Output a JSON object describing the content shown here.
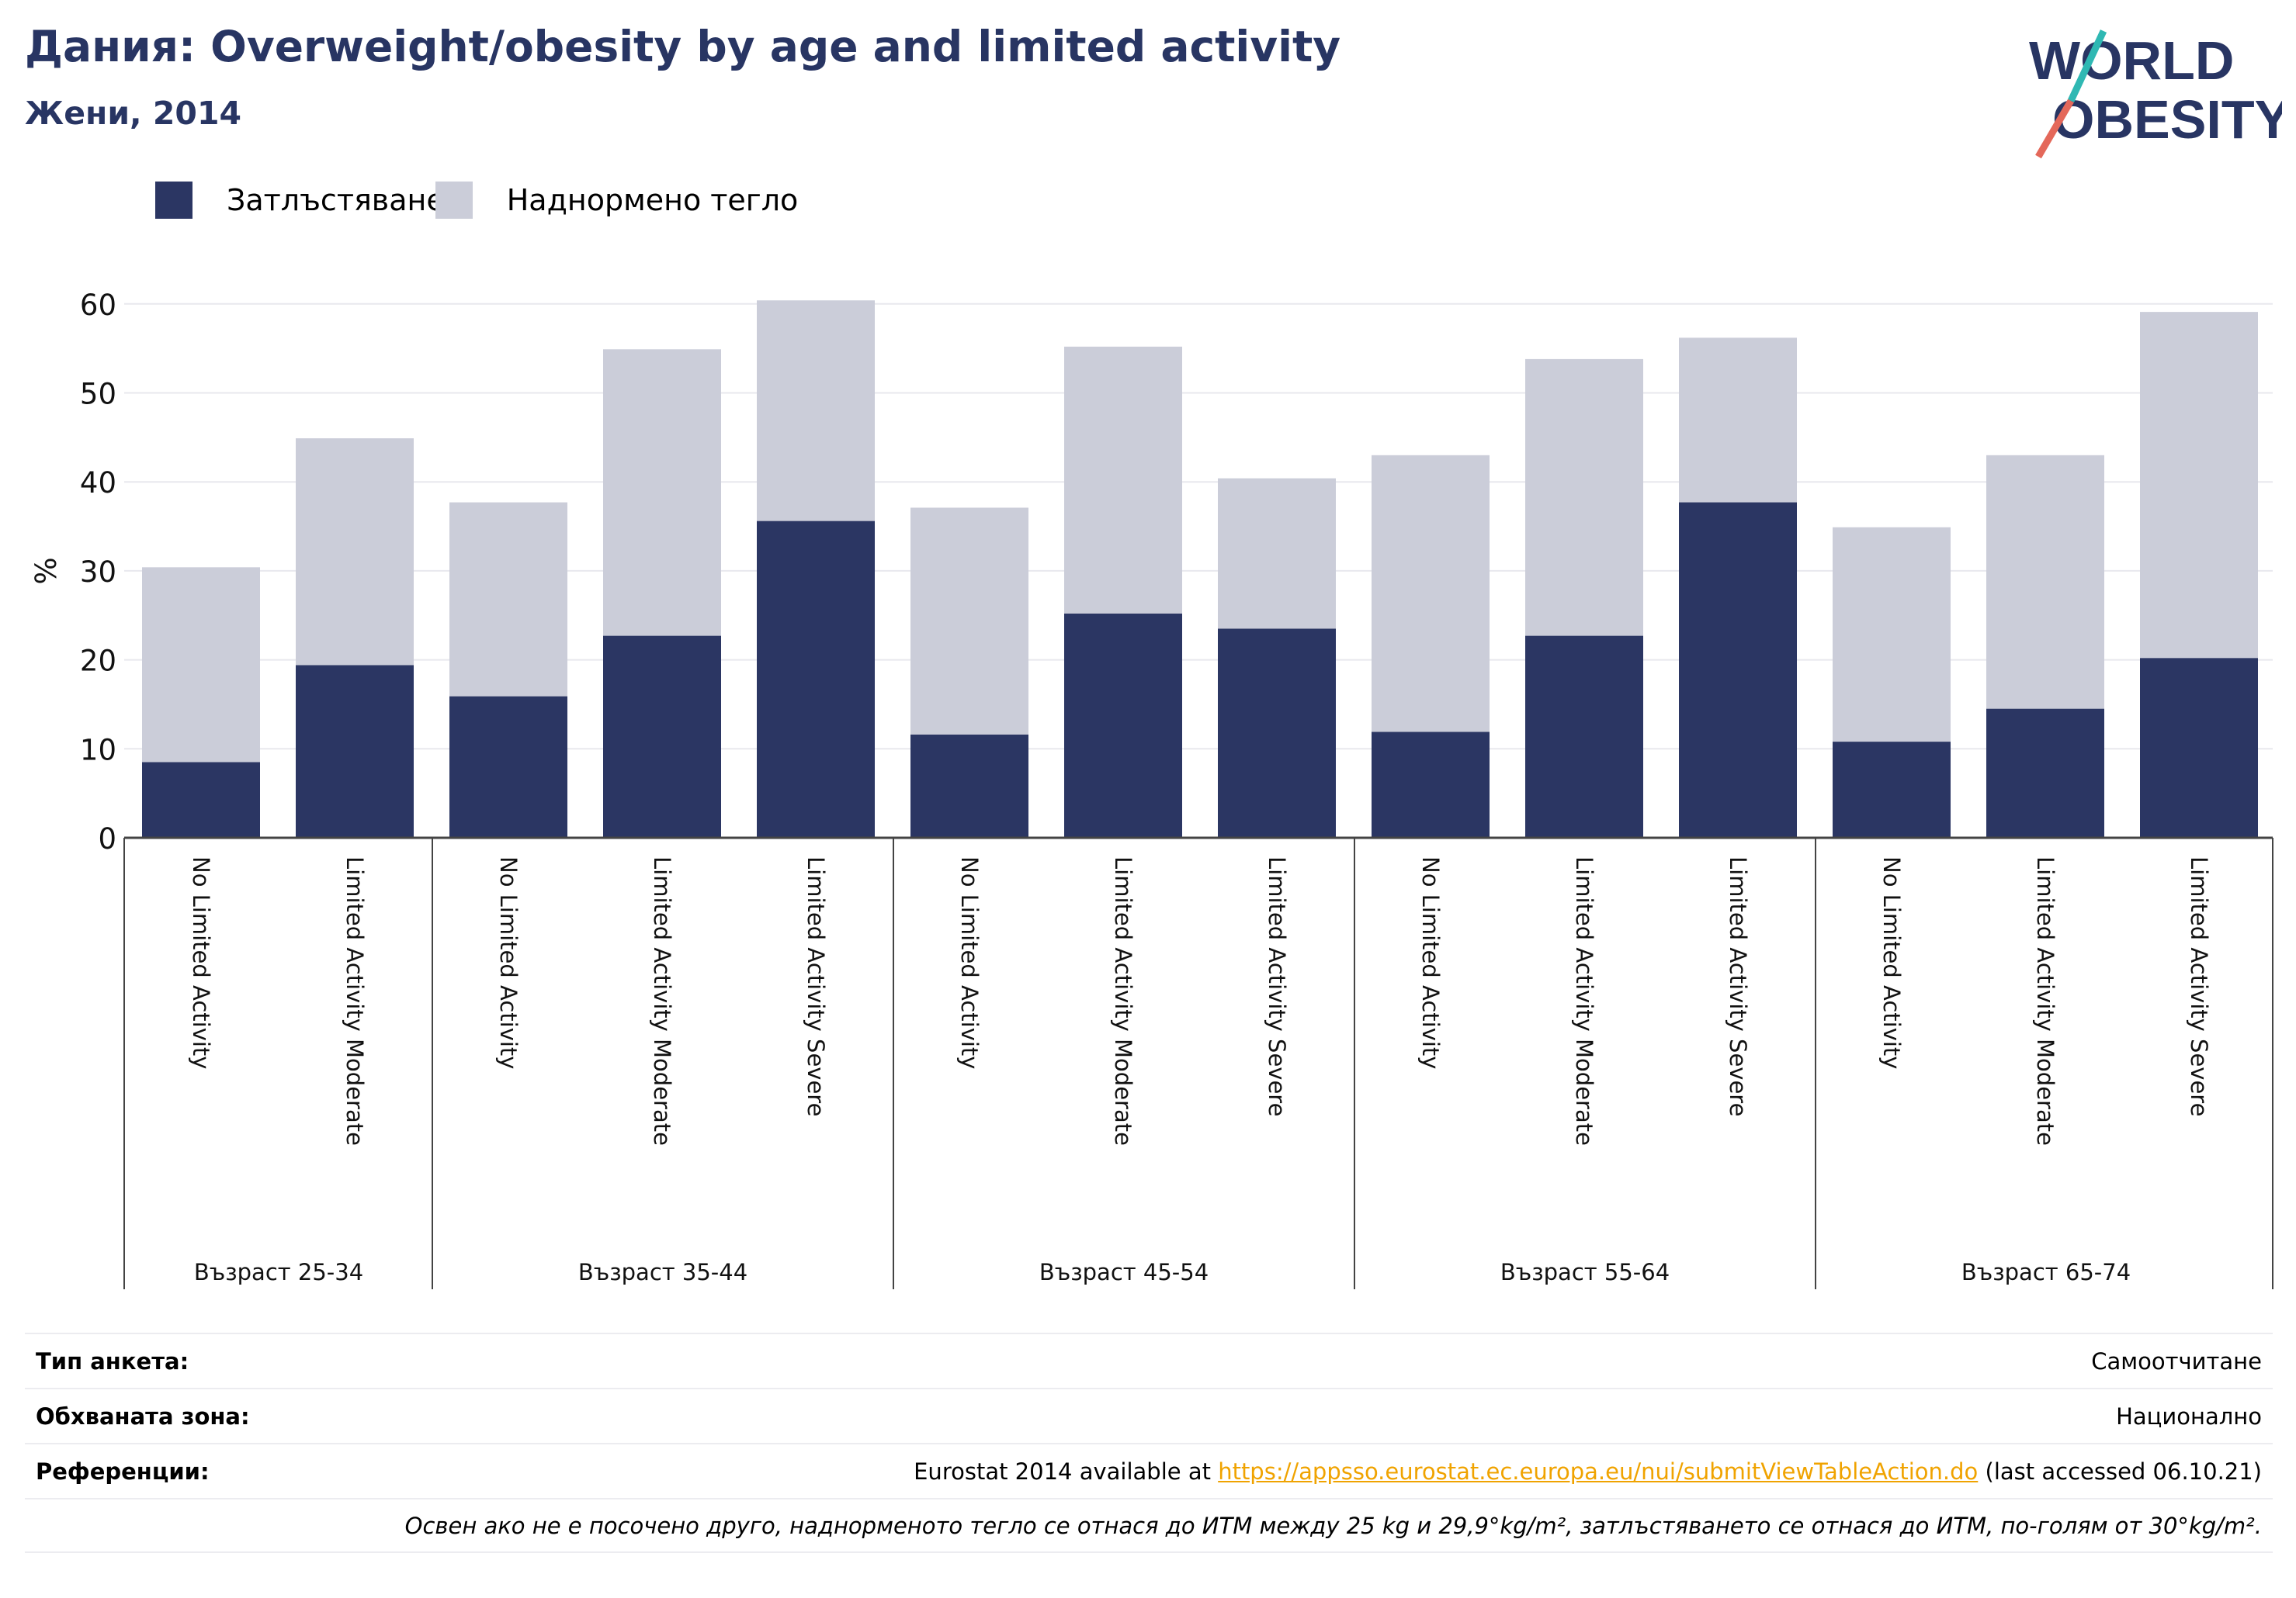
{
  "header": {
    "title": "Дания: Overweight/obesity by age and limited activity",
    "subtitle": "Жени, 2014",
    "logo_line1": "WORLD",
    "logo_line2": "OBESITY"
  },
  "legend": [
    {
      "label": "Затлъстяване",
      "color": "#2b3663"
    },
    {
      "label": "Наднормено тегло",
      "color": "#cbcdd9"
    }
  ],
  "chart_data": {
    "type": "bar",
    "stacked": true,
    "ylabel": "%",
    "ylim": [
      0,
      60
    ],
    "yticks": [
      0,
      10,
      20,
      30,
      40,
      50,
      60
    ],
    "grid": true,
    "legend_position": "top-left",
    "groups": [
      {
        "label": "Възраст 25-34",
        "categories": [
          "No Limited Activity",
          "Limited Activity Moderate"
        ]
      },
      {
        "label": "Възраст 35-44",
        "categories": [
          "No Limited Activity",
          "Limited Activity Moderate",
          "Limited Activity Severe"
        ]
      },
      {
        "label": "Възраст 45-54",
        "categories": [
          "No Limited Activity",
          "Limited Activity Moderate",
          "Limited Activity Severe"
        ]
      },
      {
        "label": "Възраст 55-64",
        "categories": [
          "No Limited Activity",
          "Limited Activity Moderate",
          "Limited Activity Severe"
        ]
      },
      {
        "label": "Възраст 65-74",
        "categories": [
          "No Limited Activity",
          "Limited Activity Moderate",
          "Limited Activity Severe"
        ]
      }
    ],
    "series": [
      {
        "name": "Затлъстяване",
        "color": "#2b3663",
        "values": [
          8.5,
          19.4,
          15.9,
          22.7,
          35.6,
          11.6,
          25.2,
          23.5,
          11.9,
          22.7,
          37.7,
          10.8,
          14.5,
          20.2
        ]
      },
      {
        "name": "Наднормено тегло",
        "color": "#cbcdd9",
        "values": [
          21.9,
          25.5,
          21.8,
          32.2,
          24.8,
          25.5,
          30.0,
          16.9,
          31.1,
          31.1,
          18.5,
          24.1,
          28.5,
          38.9
        ]
      }
    ]
  },
  "info": {
    "survey_label": "Тип анкета:",
    "survey_value": "Самоотчитане",
    "coverage_label": "Обхваната зона:",
    "coverage_value": "Национално",
    "ref_label": "Референции:",
    "ref_prefix": "Eurostat 2014 available at ",
    "ref_link": "https://appsso.eurostat.ec.europa.eu/nui/submitViewTableAction.do",
    "ref_suffix": " (last accessed 06.10.21)",
    "note": "Освен ако не е посочено друго, наднорменото тегло се отнася до ИТМ между 25 kg и 29,9°kg/m², затлъстяването се отнася до ИТМ, по-голям от 30°kg/m²."
  }
}
